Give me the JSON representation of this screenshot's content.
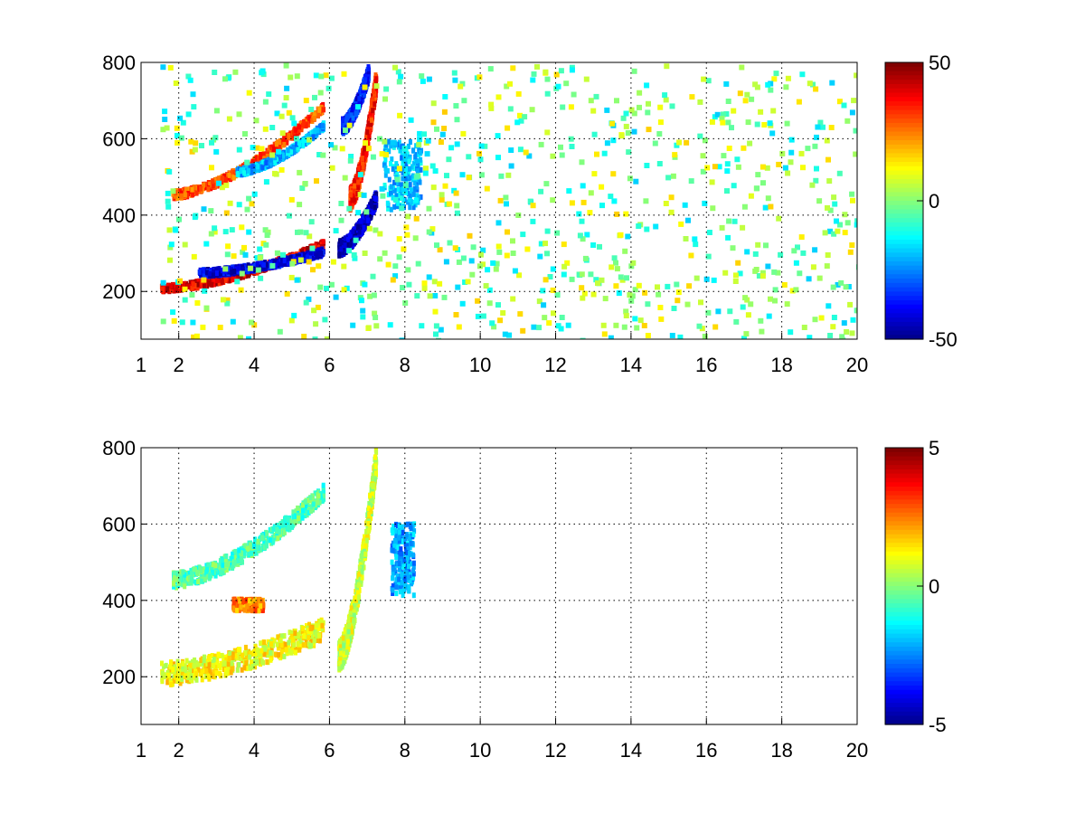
{
  "chart_data": [
    {
      "type": "heatmap",
      "title": "",
      "xlabel": "",
      "ylabel": "",
      "xlim": [
        1,
        20
      ],
      "ylim": [
        75,
        800
      ],
      "xticks": [
        "1",
        "2",
        "4",
        "6",
        "8",
        "10",
        "12",
        "14",
        "16",
        "18",
        "20"
      ],
      "yticks": [
        "200",
        "400",
        "600",
        "800"
      ],
      "grid": true,
      "colorbar": {
        "range": [
          -50,
          50
        ],
        "ticks": [
          "50",
          "0",
          "-50"
        ],
        "colormap": "jet"
      },
      "features": [
        {
          "kind": "band",
          "x": [
            1.5,
            5.8
          ],
          "y": [
            215,
            330
          ],
          "value": 40,
          "width_y": 18
        },
        {
          "kind": "band",
          "x": [
            2.5,
            5.8
          ],
          "y": [
            255,
            310
          ],
          "value": -40,
          "width_y": 18
        },
        {
          "kind": "band",
          "x": [
            1.8,
            5.8
          ],
          "y": [
            460,
            690
          ],
          "value": 30,
          "width_y": 20
        },
        {
          "kind": "band",
          "x": [
            3.5,
            5.8
          ],
          "y": [
            520,
            640
          ],
          "value": -20,
          "width_y": 18
        },
        {
          "kind": "band",
          "x": [
            6.2,
            7.2
          ],
          "y": [
            320,
            450
          ],
          "value": -45,
          "width_y": 40
        },
        {
          "kind": "band",
          "x": [
            6.5,
            7.2
          ],
          "y": [
            450,
            760
          ],
          "value": 35,
          "width_y": 60
        },
        {
          "kind": "band",
          "x": [
            6.3,
            7.0
          ],
          "y": [
            640,
            780
          ],
          "value": -35,
          "width_y": 40
        },
        {
          "kind": "blob",
          "x": [
            7.4,
            8.4
          ],
          "y": [
            420,
            600
          ],
          "value": -18
        }
      ]
    },
    {
      "type": "heatmap",
      "title": "",
      "xlabel": "",
      "ylabel": "",
      "xlim": [
        1,
        20
      ],
      "ylim": [
        75,
        800
      ],
      "xticks": [
        "1",
        "2",
        "4",
        "6",
        "8",
        "10",
        "12",
        "14",
        "16",
        "18",
        "20"
      ],
      "yticks": [
        "200",
        "400",
        "600",
        "800"
      ],
      "grid": true,
      "colorbar": {
        "range": [
          -5,
          5
        ],
        "ticks": [
          "5",
          "0",
          "-5"
        ],
        "colormap": "jet"
      },
      "features": [
        {
          "kind": "band",
          "x": [
            1.5,
            5.8
          ],
          "y": [
            215,
            330
          ],
          "value": 1.2,
          "width_y": 60
        },
        {
          "kind": "band",
          "x": [
            1.8,
            5.8
          ],
          "y": [
            460,
            690
          ],
          "value": -0.5,
          "width_y": 40
        },
        {
          "kind": "band",
          "x": [
            6.2,
            7.2
          ],
          "y": [
            260,
            780
          ],
          "value": 0.8,
          "width_y": 80
        },
        {
          "kind": "blob",
          "x": [
            7.6,
            8.2
          ],
          "y": [
            420,
            610
          ],
          "value": -2.2
        },
        {
          "kind": "blob",
          "x": [
            3.4,
            4.2
          ],
          "y": [
            380,
            410
          ],
          "value": 2.5
        }
      ]
    }
  ]
}
